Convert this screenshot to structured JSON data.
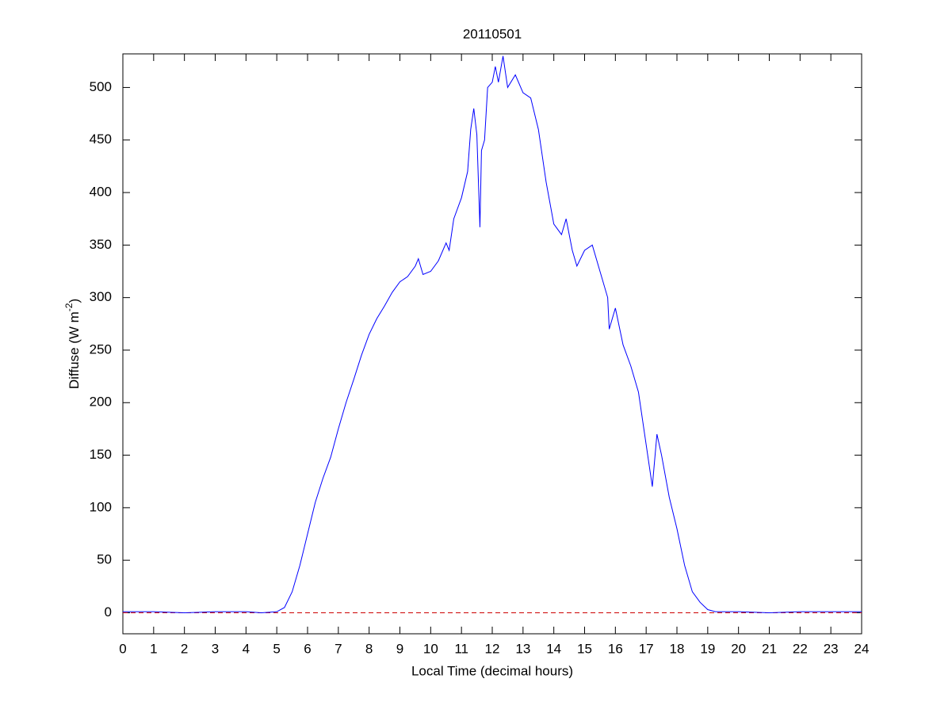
{
  "chart_data": {
    "type": "line",
    "title": "20110501",
    "xlabel": "Local Time (decimal hours)",
    "ylabel": {
      "text": "Diffuse (W m",
      "superscript": "-2",
      "suffix": ")"
    },
    "xlim": [
      0,
      24
    ],
    "ylim": [
      -20,
      532
    ],
    "xticks": [
      0,
      1,
      2,
      3,
      4,
      5,
      6,
      7,
      8,
      9,
      10,
      11,
      12,
      13,
      14,
      15,
      16,
      17,
      18,
      19,
      20,
      21,
      22,
      23,
      24
    ],
    "yticks": [
      0,
      50,
      100,
      150,
      200,
      250,
      300,
      350,
      400,
      450,
      500
    ],
    "reference_line": {
      "value": 0,
      "color": "#cc0000",
      "style": "dashed"
    },
    "series": [
      {
        "color": "#0000ff",
        "x": [
          0,
          1,
          2,
          3,
          4,
          4.5,
          5,
          5.25,
          5.5,
          5.75,
          6,
          6.25,
          6.5,
          6.75,
          7,
          7.25,
          7.5,
          7.75,
          8,
          8.25,
          8.5,
          8.75,
          9,
          9.25,
          9.5,
          9.6,
          9.75,
          10,
          10.25,
          10.5,
          10.6,
          10.75,
          11,
          11.2,
          11.3,
          11.4,
          11.5,
          11.6,
          11.65,
          11.75,
          11.85,
          12,
          12.1,
          12.2,
          12.35,
          12.5,
          12.75,
          13,
          13.25,
          13.5,
          13.75,
          14,
          14.25,
          14.4,
          14.6,
          14.75,
          15,
          15.25,
          15.5,
          15.75,
          15.8,
          16,
          16.25,
          16.5,
          16.75,
          17,
          17.2,
          17.35,
          17.5,
          17.75,
          18,
          18.25,
          18.5,
          18.75,
          19,
          19.25,
          20,
          21,
          22,
          23,
          24
        ],
        "values": [
          1,
          1,
          0,
          1,
          1,
          0,
          1,
          5,
          20,
          45,
          75,
          105,
          128,
          148,
          175,
          200,
          222,
          245,
          265,
          280,
          292,
          305,
          315,
          320,
          330,
          337,
          322,
          325,
          335,
          352,
          345,
          375,
          395,
          420,
          460,
          480,
          455,
          367,
          440,
          450,
          500,
          505,
          520,
          505,
          530,
          500,
          512,
          495,
          490,
          460,
          410,
          370,
          360,
          375,
          345,
          330,
          345,
          350,
          325,
          300,
          270,
          290,
          255,
          235,
          210,
          160,
          120,
          170,
          150,
          110,
          80,
          45,
          20,
          10,
          3,
          1,
          1,
          0,
          1,
          1,
          1
        ]
      }
    ]
  }
}
